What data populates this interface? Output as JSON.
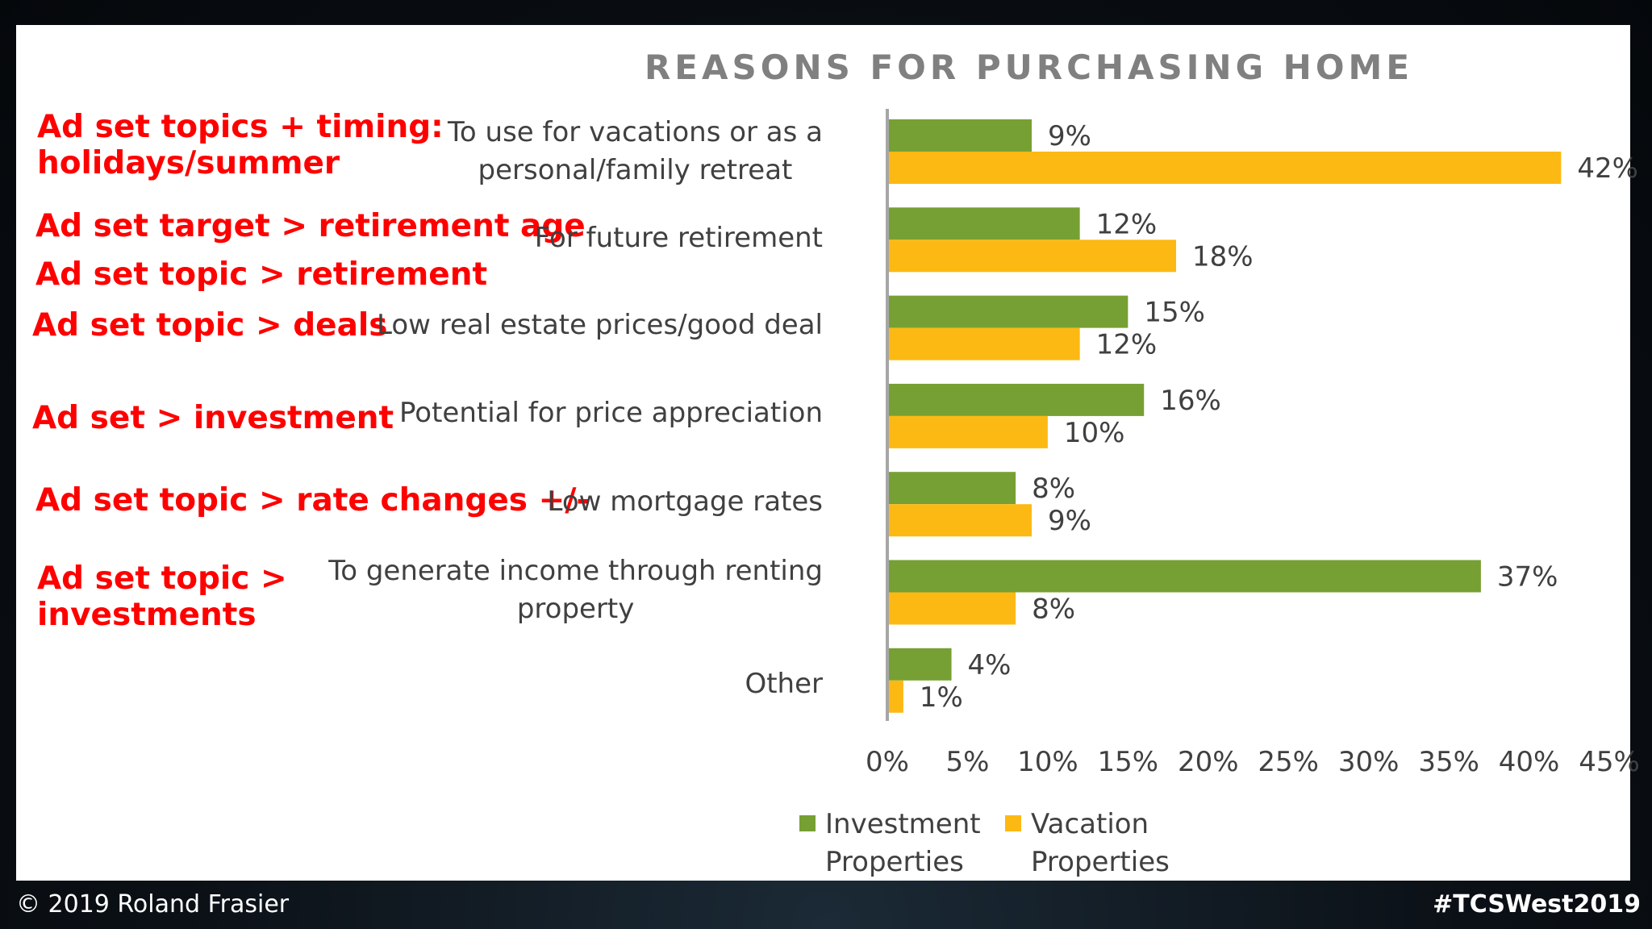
{
  "chart_data": {
    "type": "bar",
    "orientation": "horizontal",
    "title": "REASONS FOR PURCHASING HOME",
    "categories": [
      [
        "To use for vacations or as a",
        "personal/family retreat"
      ],
      [
        "For future retirement"
      ],
      [
        "Low real estate prices/good deal"
      ],
      [
        "Potential for price appreciation"
      ],
      [
        "Low mortgage rates"
      ],
      [
        "To generate income through renting",
        "property"
      ],
      [
        "Other"
      ]
    ],
    "series": [
      {
        "name": [
          "Investment",
          "Properties"
        ],
        "color": "#76a033",
        "values": [
          9,
          12,
          15,
          16,
          8,
          37,
          4
        ]
      },
      {
        "name": [
          "Vacation",
          "Properties"
        ],
        "color": "#fdb913",
        "values": [
          42,
          18,
          12,
          10,
          9,
          8,
          1
        ]
      }
    ],
    "data_labels": [
      [
        "9%",
        "12%",
        "15%",
        "16%",
        "8%",
        "37%",
        "4%"
      ],
      [
        "42%",
        "18%",
        "12%",
        "10%",
        "9%",
        "8%",
        "1%"
      ]
    ],
    "xticks": [
      "0%",
      "5%",
      "10%",
      "15%",
      "20%",
      "25%",
      "30%",
      "35%",
      "40%",
      "45%"
    ],
    "xlim": [
      0,
      45
    ],
    "legend_position": "bottom"
  },
  "annotations": [
    [
      "Ad set topics + timing:",
      "holidays/summer"
    ],
    [
      "Ad set target > retirement age",
      "Ad set topic > retirement"
    ],
    [
      "Ad set topic > deals"
    ],
    [
      "Ad set > investment"
    ],
    [
      "Ad set topic > rate changes +/-"
    ],
    [
      "Ad set topic >",
      "investments"
    ]
  ],
  "annotation_color": "#ff0000",
  "footer": {
    "copyright": "© 2019 Roland Frasier",
    "hashtag": "#TCSWest2019"
  }
}
